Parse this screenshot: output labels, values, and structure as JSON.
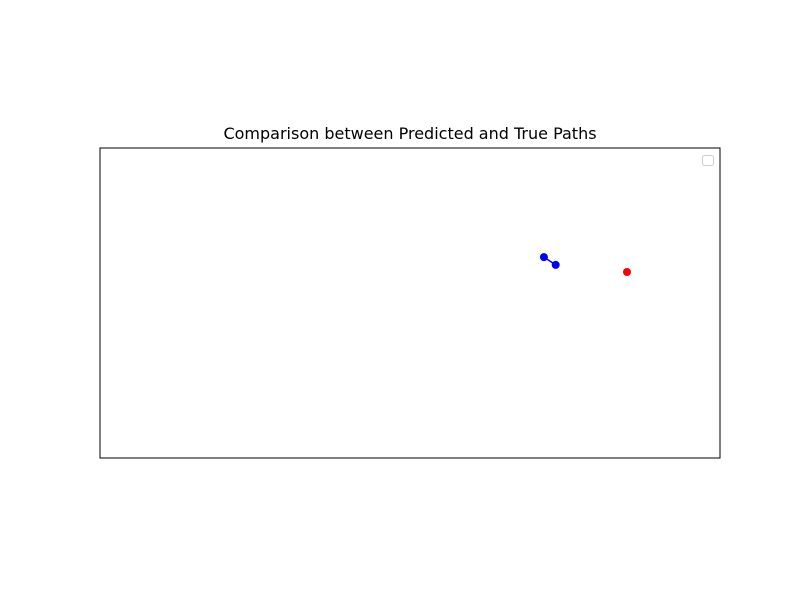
{
  "chart_data": {
    "type": "scatter",
    "title": "Comparison between Predicted and True Paths",
    "xlabel": "",
    "ylabel": "",
    "xlim": [
      0,
      100
    ],
    "ylim": [
      0,
      100
    ],
    "show_ticks": false,
    "grid": false,
    "legend": {
      "placement": "top-right",
      "entries": []
    },
    "series": [
      {
        "color": "#0000ff",
        "style": "line-with-markers",
        "points": [
          {
            "x": 71.6,
            "y": 64.8
          },
          {
            "x": 73.5,
            "y": 62.3
          }
        ]
      },
      {
        "color": "#ff0000",
        "style": "markers",
        "points": [
          {
            "x": 85.0,
            "y": 60.0
          }
        ]
      }
    ]
  }
}
